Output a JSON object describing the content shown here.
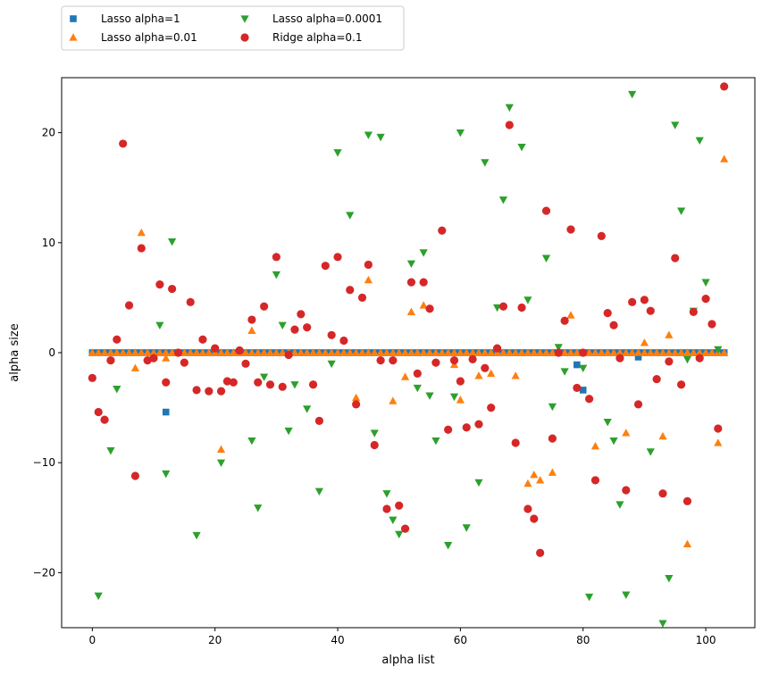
{
  "chart_data": {
    "type": "scatter",
    "xlabel": "alpha list",
    "ylabel": "alpha size",
    "xlim": [
      -5,
      108
    ],
    "ylim": [
      -25,
      25
    ],
    "xticks": [
      0,
      20,
      40,
      60,
      80,
      100
    ],
    "yticks": [
      -20,
      -10,
      0,
      10,
      20
    ],
    "xtick_labels": [
      "0",
      "20",
      "40",
      "60",
      "80",
      "100"
    ],
    "ytick_labels": [
      "−20",
      "−10",
      "0",
      "10",
      "20"
    ],
    "grid": false,
    "legend_placement": "above-top-left, 2 columns",
    "series": [
      {
        "name": "Lasso alpha=1",
        "marker": "square",
        "color": "#1f77b4",
        "points": [
          [
            12,
            -5.4
          ],
          [
            79,
            -1.1
          ],
          [
            80,
            -3.4
          ],
          [
            89,
            -0.4
          ]
        ],
        "zero_band_x": [
          0,
          103
        ],
        "zero_band_y": 0
      },
      {
        "name": "Lasso alpha=0.01",
        "marker": "triangle-up",
        "color": "#ff7f0e",
        "points": [
          [
            7,
            -1.4
          ],
          [
            8,
            10.9
          ],
          [
            12,
            -0.5
          ],
          [
            21,
            -8.8
          ],
          [
            26,
            2.0
          ],
          [
            43,
            -4.1
          ],
          [
            45,
            6.6
          ],
          [
            49,
            -4.4
          ],
          [
            51,
            -2.2
          ],
          [
            52,
            3.7
          ],
          [
            54,
            4.3
          ],
          [
            59,
            -1.1
          ],
          [
            60,
            -4.3
          ],
          [
            63,
            -2.1
          ],
          [
            65,
            -1.9
          ],
          [
            69,
            -2.1
          ],
          [
            71,
            -11.9
          ],
          [
            72,
            -11.1
          ],
          [
            73,
            -11.6
          ],
          [
            75,
            -10.9
          ],
          [
            78,
            3.4
          ],
          [
            82,
            -8.5
          ],
          [
            87,
            -7.3
          ],
          [
            90,
            0.9
          ],
          [
            93,
            -7.6
          ],
          [
            94,
            1.6
          ],
          [
            97,
            -17.4
          ],
          [
            102,
            -8.2
          ],
          [
            103,
            17.6
          ]
        ],
        "zero_band_x": [
          0,
          103
        ],
        "zero_band_y": 0
      },
      {
        "name": "Lasso alpha=0.0001",
        "marker": "triangle-down",
        "color": "#2ca02c",
        "points": [
          [
            1,
            -22.1
          ],
          [
            3,
            -8.9
          ],
          [
            4,
            -3.3
          ],
          [
            11,
            2.5
          ],
          [
            12,
            -11.0
          ],
          [
            13,
            10.1
          ],
          [
            17,
            -16.6
          ],
          [
            21,
            -10.0
          ],
          [
            26,
            -8.0
          ],
          [
            27,
            -14.1
          ],
          [
            28,
            -2.2
          ],
          [
            30,
            7.1
          ],
          [
            31,
            2.5
          ],
          [
            32,
            -7.1
          ],
          [
            33,
            -2.9
          ],
          [
            35,
            -5.1
          ],
          [
            37,
            -12.6
          ],
          [
            39,
            -1.0
          ],
          [
            40,
            18.2
          ],
          [
            42,
            12.5
          ],
          [
            46,
            -7.3
          ],
          [
            45,
            19.8
          ],
          [
            47,
            19.6
          ],
          [
            48,
            -12.8
          ],
          [
            49,
            -15.2
          ],
          [
            50,
            -16.5
          ],
          [
            52,
            8.1
          ],
          [
            53,
            -3.2
          ],
          [
            54,
            9.1
          ],
          [
            55,
            -3.9
          ],
          [
            56,
            -8.0
          ],
          [
            58,
            -17.5
          ],
          [
            59,
            -4.0
          ],
          [
            60,
            20.0
          ],
          [
            61,
            -15.9
          ],
          [
            63,
            -11.8
          ],
          [
            64,
            17.3
          ],
          [
            66,
            4.1
          ],
          [
            67,
            13.9
          ],
          [
            68,
            22.3
          ],
          [
            70,
            18.7
          ],
          [
            71,
            4.8
          ],
          [
            74,
            8.6
          ],
          [
            75,
            -4.9
          ],
          [
            76,
            0.5
          ],
          [
            77,
            -1.7
          ],
          [
            80,
            -1.4
          ],
          [
            81,
            -22.2
          ],
          [
            84,
            -6.3
          ],
          [
            85,
            -8.0
          ],
          [
            86,
            -13.8
          ],
          [
            87,
            -22.0
          ],
          [
            88,
            23.5
          ],
          [
            91,
            -9.0
          ],
          [
            93,
            -24.6
          ],
          [
            94,
            -20.5
          ],
          [
            95,
            20.7
          ],
          [
            96,
            12.9
          ],
          [
            97,
            -0.6
          ],
          [
            98,
            3.8
          ],
          [
            99,
            19.3
          ],
          [
            100,
            6.4
          ],
          [
            102,
            0.3
          ]
        ]
      },
      {
        "name": "Ridge alpha=0.1",
        "marker": "circle",
        "color": "#d62728",
        "points": [
          [
            0,
            -2.3
          ],
          [
            1,
            -5.4
          ],
          [
            2,
            -6.1
          ],
          [
            3,
            -0.7
          ],
          [
            4,
            1.2
          ],
          [
            5,
            19.0
          ],
          [
            6,
            4.3
          ],
          [
            7,
            -11.2
          ],
          [
            8,
            9.5
          ],
          [
            9,
            -0.7
          ],
          [
            10,
            -0.5
          ],
          [
            11,
            6.2
          ],
          [
            12,
            -2.7
          ],
          [
            13,
            5.8
          ],
          [
            14,
            0.0
          ],
          [
            15,
            -0.9
          ],
          [
            16,
            4.6
          ],
          [
            17,
            -3.4
          ],
          [
            18,
            1.2
          ],
          [
            19,
            -3.5
          ],
          [
            20,
            0.4
          ],
          [
            21,
            -3.5
          ],
          [
            22,
            -2.6
          ],
          [
            23,
            -2.7
          ],
          [
            24,
            0.2
          ],
          [
            25,
            -1.0
          ],
          [
            26,
            3.0
          ],
          [
            27,
            -2.7
          ],
          [
            28,
            4.2
          ],
          [
            29,
            -2.9
          ],
          [
            30,
            8.7
          ],
          [
            31,
            -3.1
          ],
          [
            32,
            -0.2
          ],
          [
            33,
            2.1
          ],
          [
            34,
            3.5
          ],
          [
            35,
            2.3
          ],
          [
            36,
            -2.9
          ],
          [
            37,
            -6.2
          ],
          [
            38,
            7.9
          ],
          [
            39,
            1.6
          ],
          [
            40,
            8.7
          ],
          [
            41,
            1.1
          ],
          [
            42,
            5.7
          ],
          [
            43,
            -4.7
          ],
          [
            44,
            5.0
          ],
          [
            45,
            8.0
          ],
          [
            46,
            -8.4
          ],
          [
            47,
            -0.7
          ],
          [
            48,
            -14.2
          ],
          [
            49,
            -0.7
          ],
          [
            50,
            -13.9
          ],
          [
            51,
            -16.0
          ],
          [
            52,
            6.4
          ],
          [
            53,
            -1.9
          ],
          [
            54,
            6.4
          ],
          [
            55,
            4.0
          ],
          [
            56,
            -0.9
          ],
          [
            57,
            11.1
          ],
          [
            58,
            -7.0
          ],
          [
            59,
            -0.7
          ],
          [
            60,
            -2.6
          ],
          [
            61,
            -6.8
          ],
          [
            62,
            -0.6
          ],
          [
            63,
            -6.5
          ],
          [
            64,
            -1.4
          ],
          [
            65,
            -5.0
          ],
          [
            66,
            0.4
          ],
          [
            67,
            4.2
          ],
          [
            68,
            20.7
          ],
          [
            69,
            -8.2
          ],
          [
            70,
            4.1
          ],
          [
            71,
            -14.2
          ],
          [
            72,
            -15.1
          ],
          [
            73,
            -18.2
          ],
          [
            74,
            12.9
          ],
          [
            75,
            -7.8
          ],
          [
            76,
            0.0
          ],
          [
            77,
            2.9
          ],
          [
            78,
            11.2
          ],
          [
            79,
            -3.2
          ],
          [
            80,
            0.0
          ],
          [
            81,
            -4.2
          ],
          [
            82,
            -11.6
          ],
          [
            83,
            10.6
          ],
          [
            84,
            3.6
          ],
          [
            85,
            2.5
          ],
          [
            86,
            -0.5
          ],
          [
            87,
            -12.5
          ],
          [
            88,
            4.6
          ],
          [
            89,
            -4.7
          ],
          [
            90,
            4.8
          ],
          [
            91,
            3.8
          ],
          [
            92,
            -2.4
          ],
          [
            93,
            -12.8
          ],
          [
            94,
            -0.8
          ],
          [
            95,
            8.6
          ],
          [
            96,
            -2.9
          ],
          [
            97,
            -13.5
          ],
          [
            98,
            3.7
          ],
          [
            99,
            -0.5
          ],
          [
            100,
            4.9
          ],
          [
            101,
            2.6
          ],
          [
            102,
            -6.9
          ],
          [
            103,
            24.2
          ]
        ]
      }
    ]
  }
}
